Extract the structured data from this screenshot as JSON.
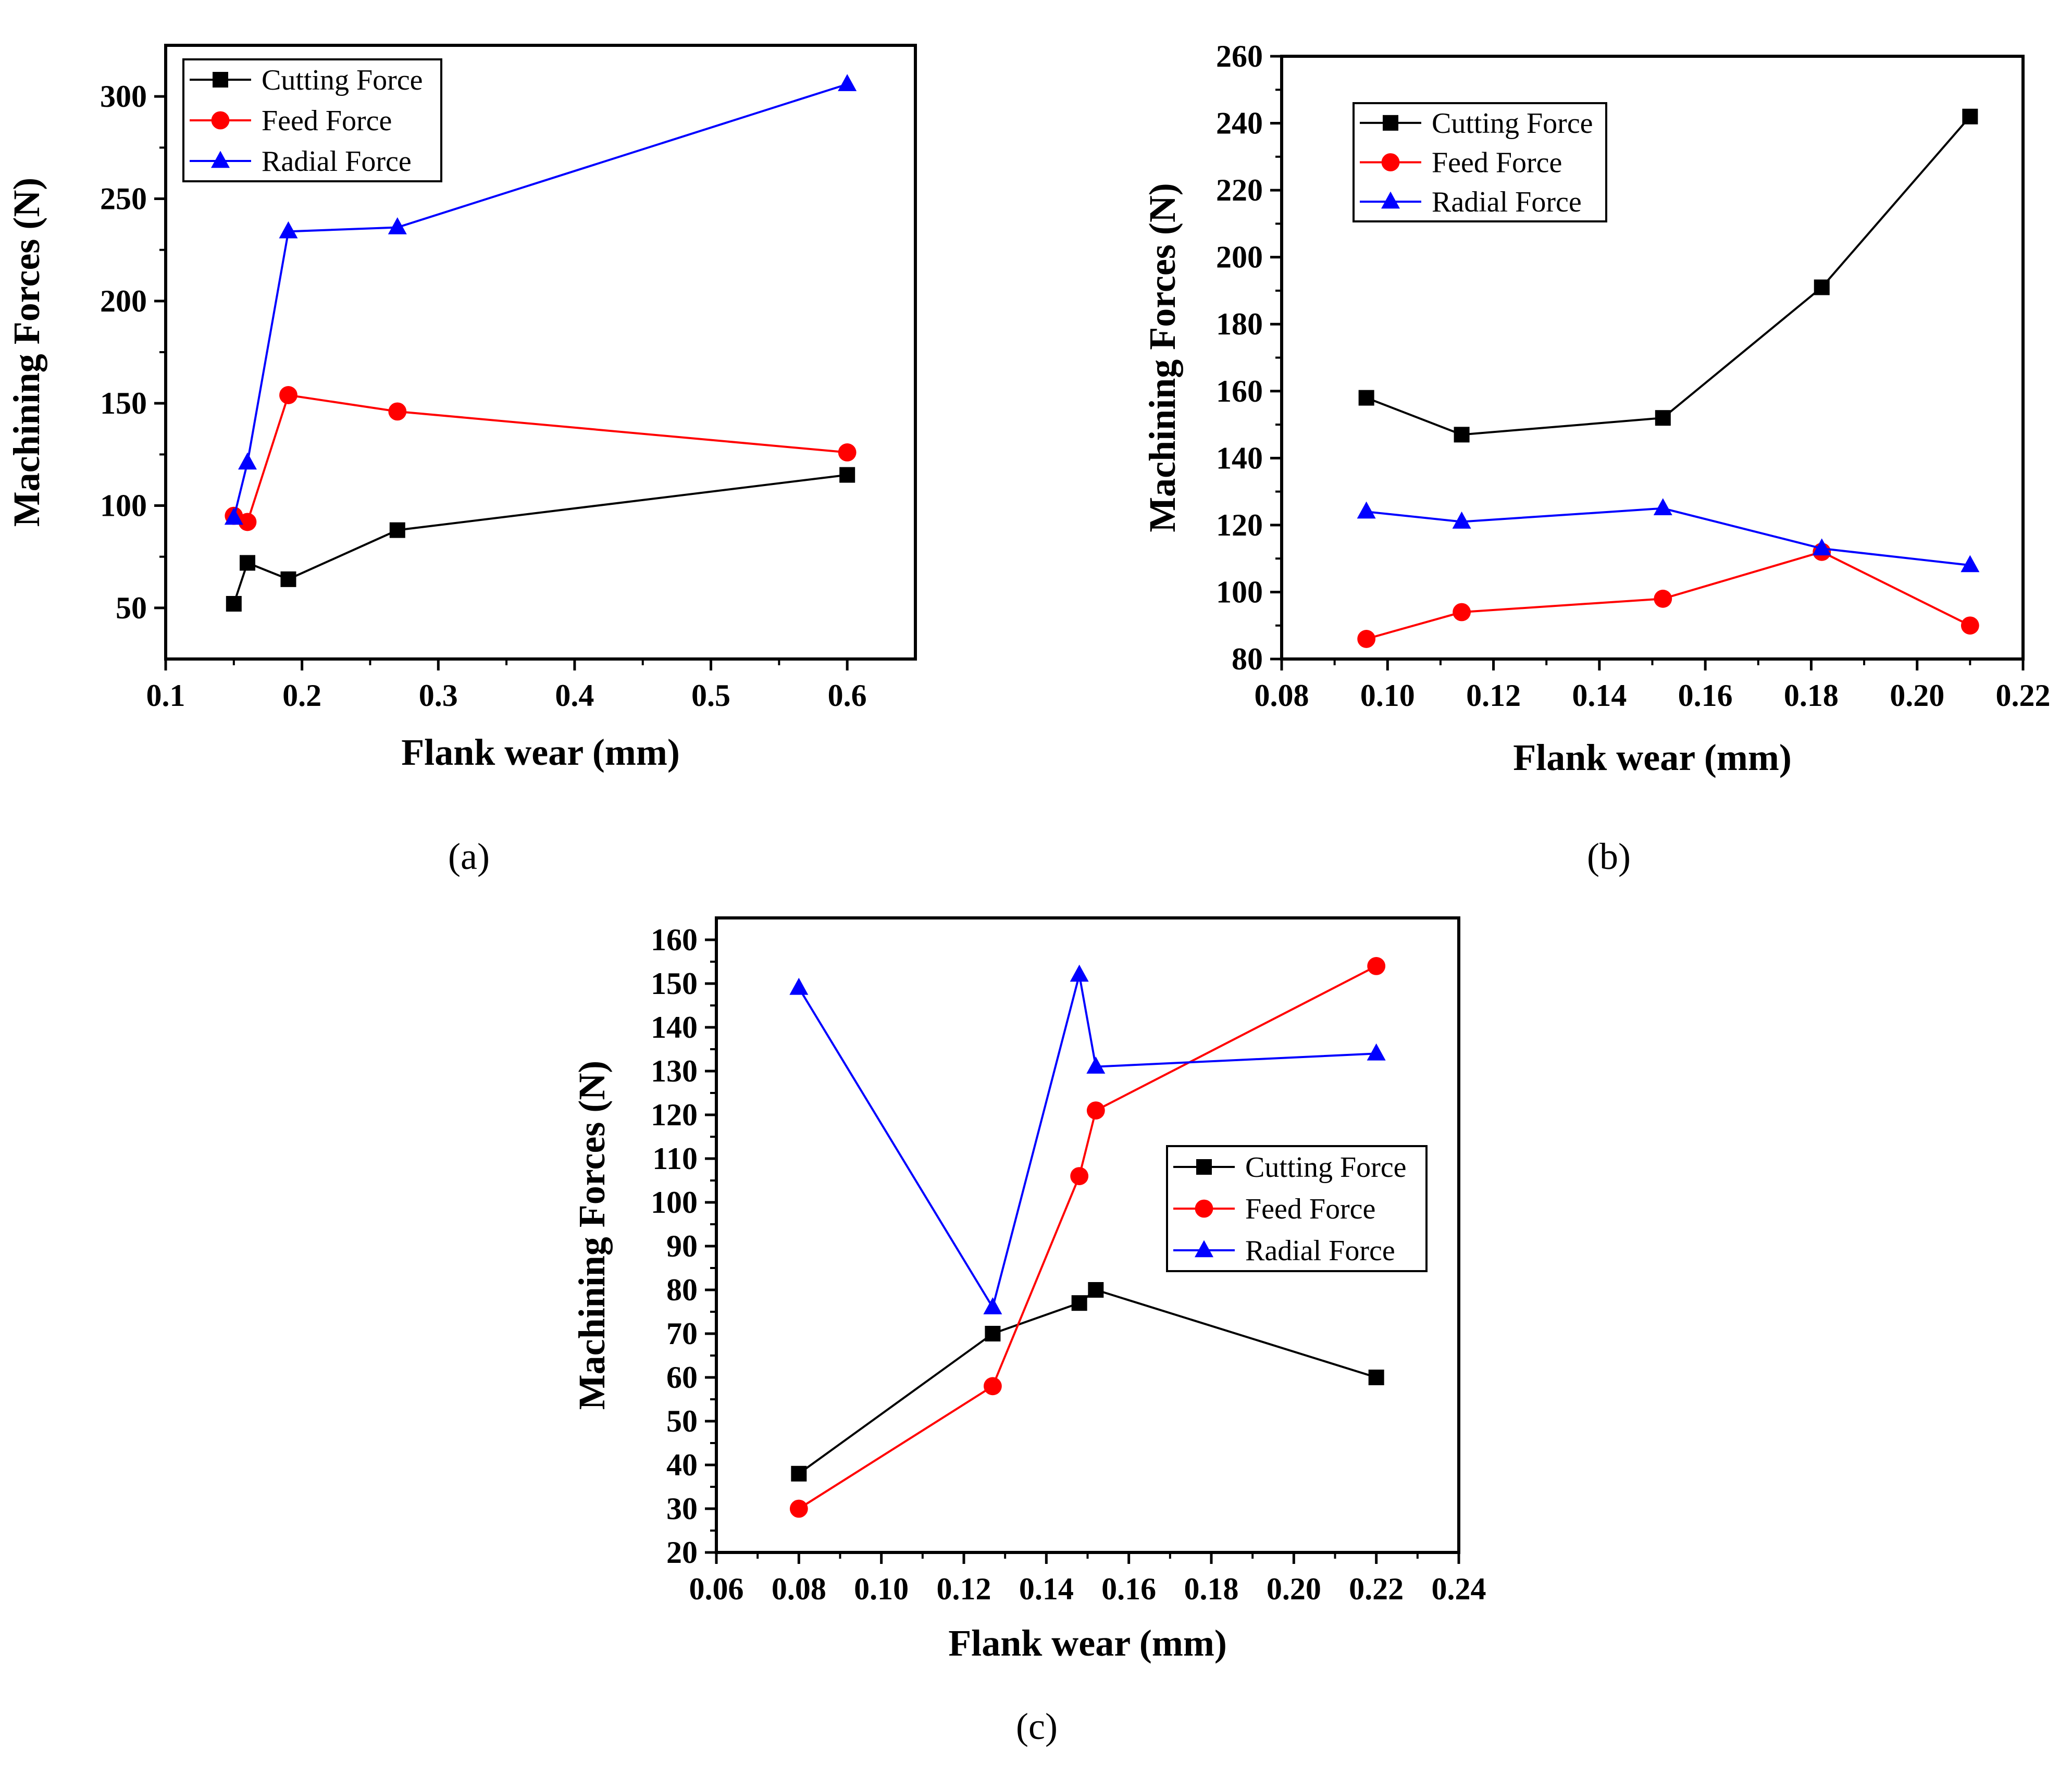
{
  "series_styles": [
    {
      "name": "Cutting Force",
      "color": "#000000",
      "marker": "square"
    },
    {
      "name": "Feed Force",
      "color": "#ff0000",
      "marker": "circle"
    },
    {
      "name": "Radial Force",
      "color": "#0000ff",
      "marker": "triangle"
    }
  ],
  "chart_data": [
    {
      "type": "line",
      "caption": "(a)",
      "xlabel": "Flank wear (mm)",
      "ylabel": "Machining Forces (N)",
      "xlim": [
        0.1,
        0.65
      ],
      "ylim": [
        25,
        325
      ],
      "xticks": [
        0.1,
        0.2,
        0.3,
        0.4,
        0.5,
        0.6
      ],
      "xtick_labels": [
        "0.1",
        "0.2",
        "0.3",
        "0.4",
        "0.5",
        "0.6"
      ],
      "yticks": [
        50,
        100,
        150,
        200,
        250,
        300
      ],
      "ytick_labels": [
        "50",
        "100",
        "150",
        "200",
        "250",
        "300"
      ],
      "legend_position": "top-left",
      "series": [
        {
          "name": "Cutting Force",
          "x": [
            0.15,
            0.16,
            0.19,
            0.27,
            0.6
          ],
          "y": [
            52,
            72,
            64,
            88,
            115
          ]
        },
        {
          "name": "Feed Force",
          "x": [
            0.15,
            0.16,
            0.19,
            0.27,
            0.6
          ],
          "y": [
            95,
            92,
            154,
            146,
            126
          ]
        },
        {
          "name": "Radial Force",
          "x": [
            0.15,
            0.16,
            0.19,
            0.27,
            0.6
          ],
          "y": [
            94,
            121,
            234,
            236,
            306
          ]
        }
      ]
    },
    {
      "type": "line",
      "caption": "(b)",
      "xlabel": "Flank wear (mm)",
      "ylabel": "Machining Forces (N)",
      "xlim": [
        0.08,
        0.22
      ],
      "ylim": [
        80,
        260
      ],
      "xticks": [
        0.08,
        0.1,
        0.12,
        0.14,
        0.16,
        0.18,
        0.2,
        0.22
      ],
      "xtick_labels": [
        "0.08",
        "0.10",
        "0.12",
        "0.14",
        "0.16",
        "0.18",
        "0.20",
        "0.22"
      ],
      "yticks": [
        80,
        100,
        120,
        140,
        160,
        180,
        200,
        220,
        240,
        260
      ],
      "ytick_labels": [
        "80",
        "100",
        "120",
        "140",
        "160",
        "180",
        "200",
        "220",
        "240",
        "260"
      ],
      "legend_position": "top-left",
      "series": [
        {
          "name": "Cutting Force",
          "x": [
            0.096,
            0.114,
            0.152,
            0.182,
            0.21
          ],
          "y": [
            158,
            147,
            152,
            191,
            242
          ]
        },
        {
          "name": "Feed Force",
          "x": [
            0.096,
            0.114,
            0.152,
            0.182,
            0.21
          ],
          "y": [
            86,
            94,
            98,
            112,
            90
          ]
        },
        {
          "name": "Radial Force",
          "x": [
            0.096,
            0.114,
            0.152,
            0.182,
            0.21
          ],
          "y": [
            124,
            121,
            125,
            113,
            108
          ]
        }
      ]
    },
    {
      "type": "line",
      "caption": "(c)",
      "xlabel": "Flank wear (mm)",
      "ylabel": "Machining Forces (N)",
      "xlim": [
        0.06,
        0.24
      ],
      "ylim": [
        20,
        165
      ],
      "xticks": [
        0.06,
        0.08,
        0.1,
        0.12,
        0.14,
        0.16,
        0.18,
        0.2,
        0.22,
        0.24
      ],
      "xtick_labels": [
        "0.06",
        "0.08",
        "0.10",
        "0.12",
        "0.14",
        "0.16",
        "0.18",
        "0.20",
        "0.22",
        "0.24"
      ],
      "yticks": [
        20,
        30,
        40,
        50,
        60,
        70,
        80,
        90,
        100,
        110,
        120,
        130,
        140,
        150,
        160
      ],
      "ytick_labels": [
        "20",
        "30",
        "40",
        "50",
        "60",
        "70",
        "80",
        "90",
        "100",
        "110",
        "120",
        "130",
        "140",
        "150",
        "160"
      ],
      "legend_position": "center-right",
      "series": [
        {
          "name": "Cutting Force",
          "x": [
            0.08,
            0.127,
            0.148,
            0.152,
            0.22
          ],
          "y": [
            38,
            70,
            77,
            80,
            60
          ]
        },
        {
          "name": "Feed Force",
          "x": [
            0.08,
            0.127,
            0.148,
            0.152,
            0.22
          ],
          "y": [
            30,
            58,
            106,
            121,
            154
          ]
        },
        {
          "name": "Radial Force",
          "x": [
            0.08,
            0.127,
            0.148,
            0.152,
            0.22
          ],
          "y": [
            149,
            76,
            152,
            131,
            134
          ]
        }
      ]
    }
  ]
}
